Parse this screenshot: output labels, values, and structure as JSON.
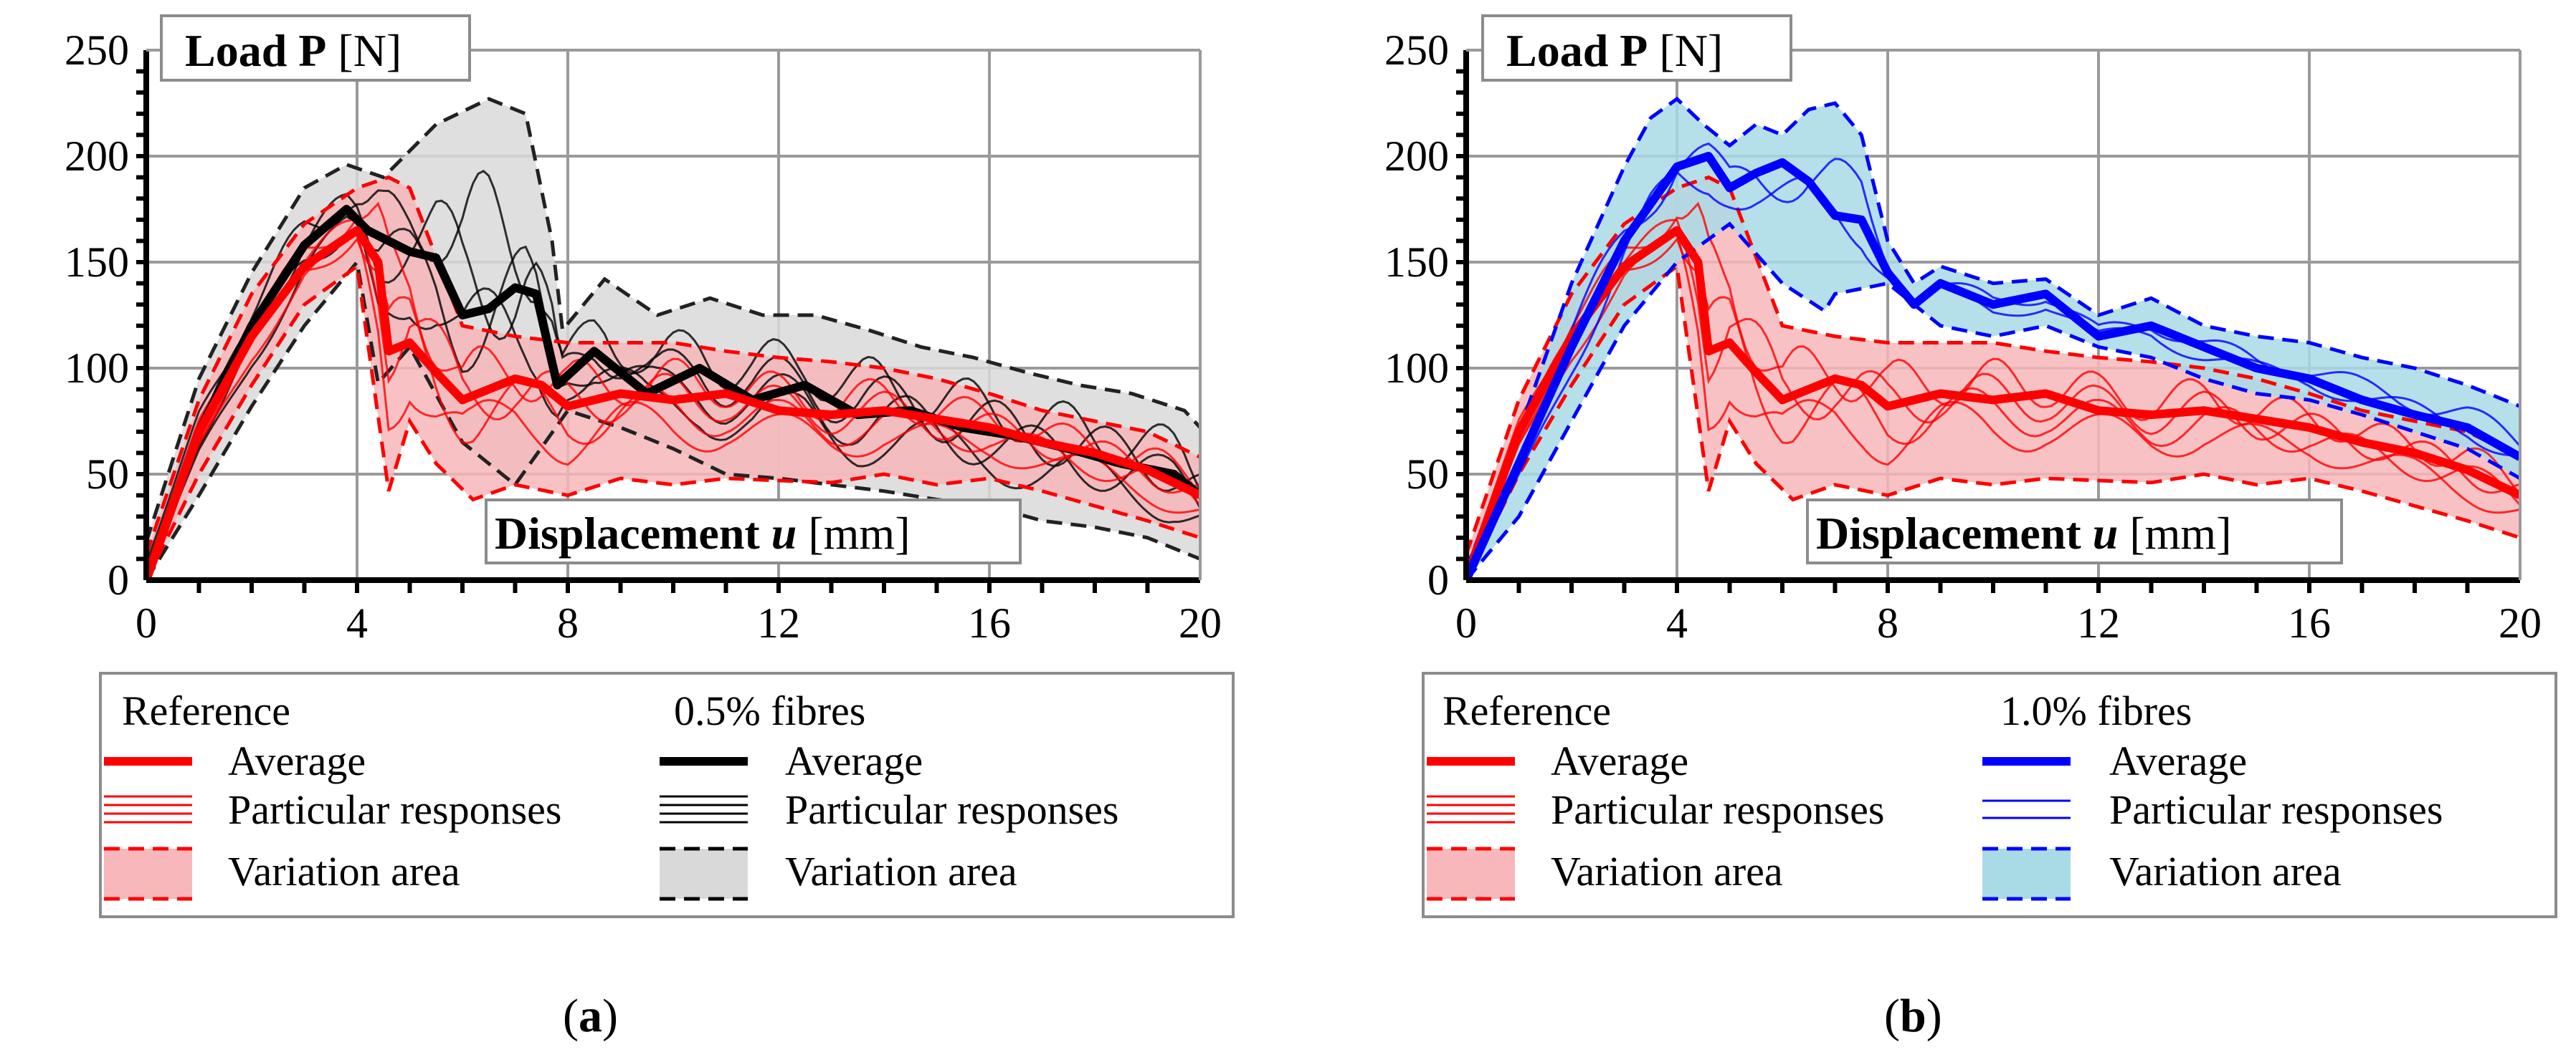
{
  "chart_data": [
    {
      "id": "a",
      "type": "line",
      "caption_letter": "a",
      "ylabel_bold": "Load P",
      "ylabel_unit": "[N]",
      "xlabel_bold": "Displacement",
      "xlabel_var": "u",
      "xlabel_unit": "[mm]",
      "xlim": [
        0,
        20
      ],
      "ylim": [
        0,
        250
      ],
      "xticks": [
        "0",
        "4",
        "8",
        "12",
        "16",
        "20"
      ],
      "yticks": [
        "0",
        "50",
        "100",
        "150",
        "200",
        "250"
      ],
      "grid": true,
      "legend_location": "below",
      "colors": {
        "reference": "#ff0000",
        "reference_fill": "#f7b7bb",
        "fibre": "#000000",
        "fibre_fill": "#d9d9d9"
      },
      "legend": {
        "group1_title": "Reference",
        "group2_title": "0.5% fibres",
        "average": "Average",
        "particular": "Particular responses",
        "variation": "Variation area"
      },
      "series": [
        {
          "name": "Reference average",
          "group": "reference",
          "role": "average",
          "x": [
            0,
            1,
            2,
            3,
            4,
            4.4,
            4.6,
            5,
            5.5,
            6,
            6.5,
            7,
            7.5,
            8,
            9,
            10,
            11,
            12,
            13,
            14,
            15,
            16,
            17,
            18,
            19,
            20
          ],
          "y": [
            0,
            70,
            115,
            148,
            165,
            150,
            108,
            112,
            98,
            85,
            90,
            95,
            92,
            82,
            88,
            85,
            88,
            80,
            78,
            80,
            76,
            72,
            65,
            60,
            52,
            40
          ]
        },
        {
          "name": "Reference variation upper",
          "group": "reference",
          "role": "upper",
          "x": [
            0,
            1,
            2,
            3,
            4,
            4.6,
            5,
            6,
            7,
            8,
            9,
            10,
            11,
            12,
            13,
            14,
            15,
            16,
            17,
            18,
            19,
            20
          ],
          "y": [
            12,
            85,
            135,
            168,
            185,
            190,
            185,
            120,
            115,
            112,
            112,
            112,
            108,
            105,
            103,
            100,
            95,
            88,
            80,
            75,
            70,
            58
          ]
        },
        {
          "name": "Reference variation lower",
          "group": "reference",
          "role": "lower",
          "x": [
            0,
            1,
            2,
            3,
            4,
            4.6,
            5,
            5.5,
            6.2,
            7,
            8,
            9,
            10,
            11,
            12,
            13,
            14,
            15,
            16,
            17,
            18,
            19,
            20
          ],
          "y": [
            0,
            50,
            92,
            130,
            148,
            42,
            75,
            55,
            38,
            45,
            40,
            48,
            45,
            48,
            47,
            46,
            50,
            45,
            48,
            42,
            35,
            28,
            20
          ]
        },
        {
          "name": "0.5% fibres average",
          "group": "fibre",
          "role": "average",
          "x": [
            0,
            1,
            2,
            3,
            3.8,
            4.2,
            5,
            5.5,
            6,
            6.5,
            7,
            7.4,
            7.8,
            8.5,
            9.5,
            10.5,
            11.5,
            12.5,
            13.5,
            14.5,
            15.5,
            16.5,
            17.5,
            18.5,
            19.5,
            20
          ],
          "y": [
            0,
            70,
            120,
            158,
            175,
            165,
            155,
            152,
            125,
            128,
            138,
            135,
            92,
            108,
            88,
            100,
            85,
            92,
            78,
            80,
            72,
            68,
            62,
            55,
            50,
            40
          ]
        },
        {
          "name": "0.5% fibres variation upper",
          "group": "fibre",
          "role": "upper",
          "x": [
            0,
            1,
            2,
            3,
            3.8,
            4.5,
            5.5,
            6.5,
            7.2,
            7.7,
            7.9,
            8.7,
            9.7,
            10.7,
            11.7,
            12.7,
            13.7,
            14.7,
            15.7,
            16.7,
            17.7,
            18.7,
            19.7,
            20
          ],
          "y": [
            18,
            95,
            145,
            185,
            196,
            190,
            215,
            227,
            220,
            160,
            118,
            142,
            125,
            133,
            125,
            125,
            118,
            110,
            105,
            98,
            92,
            88,
            80,
            72
          ]
        },
        {
          "name": "0.5% fibres variation lower",
          "group": "fibre",
          "role": "lower",
          "x": [
            0,
            1,
            2,
            3,
            4,
            4.4,
            5,
            6,
            7,
            8,
            9,
            10,
            11,
            12,
            13,
            14,
            15,
            16,
            17,
            18,
            19,
            20
          ],
          "y": [
            0,
            40,
            82,
            120,
            150,
            93,
            110,
            65,
            45,
            80,
            72,
            62,
            50,
            48,
            45,
            42,
            38,
            35,
            28,
            25,
            20,
            10
          ]
        }
      ]
    },
    {
      "id": "b",
      "type": "line",
      "caption_letter": "b",
      "ylabel_bold": "Load P",
      "ylabel_unit": "[N]",
      "xlabel_bold": "Displacement",
      "xlabel_var": "u",
      "xlabel_unit": "[mm]",
      "xlim": [
        0,
        20
      ],
      "ylim": [
        0,
        250
      ],
      "xticks": [
        "0",
        "4",
        "8",
        "12",
        "16",
        "20"
      ],
      "yticks": [
        "0",
        "50",
        "100",
        "150",
        "200",
        "250"
      ],
      "grid": true,
      "legend_location": "below",
      "colors": {
        "reference": "#ff0000",
        "reference_fill": "#f7b7bb",
        "fibre": "#0000ff",
        "fibre_fill": "#a8dbe6"
      },
      "legend": {
        "group1_title": "Reference",
        "group2_title": "1.0% fibres",
        "average": "Average",
        "particular": "Particular responses",
        "variation": "Variation area"
      },
      "series": [
        {
          "name": "Reference average",
          "group": "reference",
          "role": "average",
          "x": [
            0,
            1,
            2,
            3,
            4,
            4.4,
            4.6,
            5,
            5.5,
            6,
            6.5,
            7,
            7.5,
            8,
            9,
            10,
            11,
            12,
            13,
            14,
            15,
            16,
            17,
            18,
            19,
            20
          ],
          "y": [
            0,
            70,
            115,
            148,
            165,
            150,
            108,
            112,
            98,
            85,
            90,
            95,
            92,
            82,
            88,
            85,
            88,
            80,
            78,
            80,
            76,
            72,
            65,
            60,
            52,
            40
          ]
        },
        {
          "name": "Reference variation upper",
          "group": "reference",
          "role": "upper",
          "x": [
            0,
            1,
            2,
            3,
            4,
            4.6,
            5,
            6,
            7,
            8,
            9,
            10,
            11,
            12,
            13,
            14,
            15,
            16,
            17,
            18,
            19,
            20
          ],
          "y": [
            12,
            85,
            135,
            168,
            185,
            190,
            185,
            120,
            115,
            112,
            112,
            112,
            108,
            105,
            103,
            100,
            95,
            88,
            80,
            75,
            70,
            58
          ]
        },
        {
          "name": "Reference variation lower",
          "group": "reference",
          "role": "lower",
          "x": [
            0,
            1,
            2,
            3,
            4,
            4.6,
            5,
            5.5,
            6.2,
            7,
            8,
            9,
            10,
            11,
            12,
            13,
            14,
            15,
            16,
            17,
            18,
            19,
            20
          ],
          "y": [
            0,
            50,
            92,
            130,
            148,
            42,
            75,
            55,
            38,
            45,
            40,
            48,
            45,
            48,
            47,
            46,
            50,
            45,
            48,
            42,
            35,
            28,
            20
          ]
        },
        {
          "name": "1.0% fibres average",
          "group": "fibre",
          "role": "average",
          "x": [
            0,
            1,
            2,
            3,
            4,
            4.6,
            5,
            5.5,
            6,
            6.5,
            7,
            7.5,
            8,
            8.5,
            9,
            10,
            11,
            12,
            13,
            14,
            15,
            16,
            17,
            18,
            19,
            20
          ],
          "y": [
            0,
            55,
            110,
            160,
            195,
            200,
            185,
            192,
            197,
            188,
            172,
            170,
            145,
            130,
            140,
            130,
            135,
            115,
            120,
            110,
            100,
            95,
            85,
            78,
            72,
            58
          ]
        },
        {
          "name": "1.0% fibres variation upper",
          "group": "fibre",
          "role": "upper",
          "x": [
            0,
            1,
            2,
            3,
            3.5,
            4,
            4.5,
            5,
            5.5,
            6,
            6.5,
            7,
            7.5,
            8,
            8.5,
            9,
            10,
            11,
            12,
            13,
            14,
            15,
            16,
            17,
            18,
            19,
            20
          ],
          "y": [
            5,
            70,
            140,
            195,
            218,
            227,
            215,
            205,
            215,
            210,
            222,
            225,
            210,
            160,
            140,
            148,
            140,
            142,
            125,
            133,
            120,
            115,
            112,
            105,
            100,
            92,
            82
          ]
        },
        {
          "name": "1.0% fibres variation lower",
          "group": "fibre",
          "role": "lower",
          "x": [
            0,
            1,
            2,
            3,
            4,
            5,
            6,
            6.8,
            7,
            8,
            9,
            10,
            11,
            12,
            13,
            14,
            15,
            16,
            17,
            18,
            19,
            20
          ],
          "y": [
            0,
            30,
            75,
            120,
            150,
            168,
            140,
            127,
            135,
            140,
            120,
            115,
            120,
            110,
            105,
            95,
            88,
            85,
            78,
            70,
            62,
            48
          ]
        }
      ]
    }
  ]
}
